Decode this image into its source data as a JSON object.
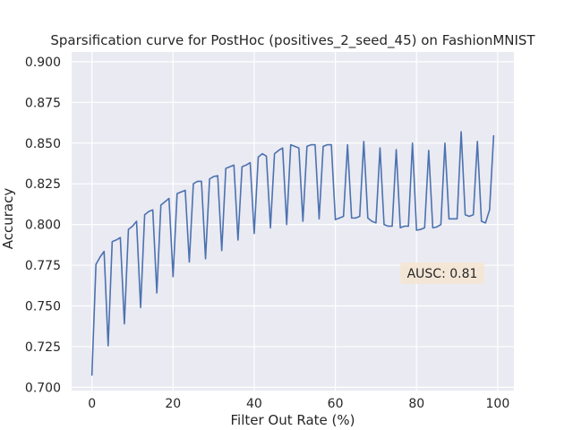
{
  "chart_data": {
    "type": "line",
    "title": "Sparsification curve for PostHoc (positives_2_seed_45) on FashionMNIST",
    "xlabel": "Filter Out Rate (%)",
    "ylabel": "Accuracy",
    "xlim": [
      -5,
      104
    ],
    "ylim": [
      0.698,
      0.906
    ],
    "xticks": [
      0,
      20,
      40,
      60,
      80,
      100
    ],
    "yticks": [
      0.7,
      0.725,
      0.75,
      0.775,
      0.8,
      0.825,
      0.85,
      0.875,
      0.9
    ],
    "grid": true,
    "background": "#eaeaf2",
    "series": [
      {
        "color": "#4c72b0",
        "x": [
          0,
          1,
          2,
          3,
          4,
          5,
          6,
          7,
          8,
          9,
          10,
          11,
          12,
          13,
          14,
          15,
          16,
          17,
          18,
          19,
          20,
          21,
          22,
          23,
          24,
          25,
          26,
          27,
          28,
          29,
          30,
          31,
          32,
          33,
          34,
          35,
          36,
          37,
          38,
          39,
          40,
          41,
          42,
          43,
          44,
          45,
          46,
          47,
          48,
          49,
          50,
          51,
          52,
          53,
          54,
          55,
          56,
          57,
          58,
          59,
          60,
          61,
          62,
          63,
          64,
          65,
          66,
          67,
          68,
          69,
          70,
          71,
          72,
          73,
          74,
          75,
          76,
          77,
          78,
          79,
          80,
          81,
          82,
          83,
          84,
          85,
          86,
          87,
          88,
          89,
          90,
          91,
          92,
          93,
          94,
          95,
          96,
          97,
          98,
          99
        ],
        "values": [
          0.7075,
          0.7755,
          0.78,
          0.7835,
          0.7255,
          0.7895,
          0.7905,
          0.792,
          0.739,
          0.797,
          0.799,
          0.802,
          0.749,
          0.806,
          0.808,
          0.809,
          0.758,
          0.812,
          0.814,
          0.816,
          0.768,
          0.819,
          0.82,
          0.821,
          0.777,
          0.825,
          0.8265,
          0.8265,
          0.779,
          0.828,
          0.8295,
          0.83,
          0.784,
          0.8345,
          0.8355,
          0.8365,
          0.7905,
          0.8355,
          0.8365,
          0.838,
          0.7945,
          0.8415,
          0.8435,
          0.842,
          0.798,
          0.8435,
          0.8455,
          0.847,
          0.8,
          0.849,
          0.848,
          0.847,
          0.802,
          0.848,
          0.849,
          0.849,
          0.8035,
          0.848,
          0.849,
          0.849,
          0.803,
          0.804,
          0.805,
          0.849,
          0.804,
          0.804,
          0.805,
          0.851,
          0.804,
          0.802,
          0.801,
          0.847,
          0.8,
          0.799,
          0.799,
          0.846,
          0.798,
          0.799,
          0.799,
          0.85,
          0.7965,
          0.797,
          0.798,
          0.8455,
          0.798,
          0.7985,
          0.8,
          0.85,
          0.8035,
          0.8035,
          0.8035,
          0.857,
          0.806,
          0.805,
          0.806,
          0.851,
          0.802,
          0.801,
          0.809,
          0.8545
        ]
      }
    ],
    "annotation": "AUSC: 0.81"
  }
}
